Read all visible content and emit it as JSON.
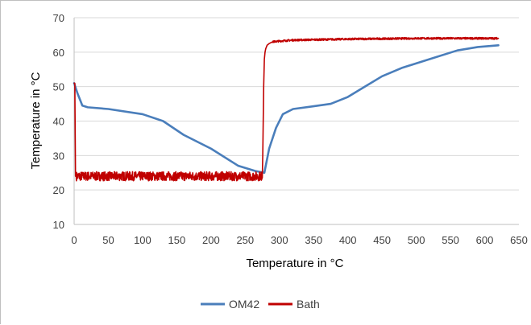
{
  "chart_data": {
    "type": "line",
    "title": "",
    "xlabel": "Temperature in °C",
    "ylabel": "Temperature in °C",
    "xlim": [
      0,
      650
    ],
    "ylim": [
      10,
      70
    ],
    "x_ticks": [
      "0",
      "50",
      "100",
      "150",
      "200",
      "250",
      "300",
      "350",
      "400",
      "450",
      "500",
      "550",
      "600",
      "650"
    ],
    "y_ticks": [
      "10",
      "20",
      "30",
      "40",
      "50",
      "60",
      "70"
    ],
    "grid": "horizontal",
    "legend_position": "bottom",
    "series": [
      {
        "name": "OM42",
        "color": "#4a7ebb",
        "x": [
          0,
          5,
          12,
          20,
          50,
          100,
          130,
          160,
          200,
          240,
          265,
          278,
          285,
          295,
          305,
          320,
          350,
          375,
          400,
          425,
          450,
          480,
          520,
          560,
          590,
          620
        ],
        "y": [
          51,
          48,
          44.5,
          44,
          43.5,
          42,
          40,
          36,
          32,
          27,
          25.5,
          25,
          32,
          38,
          42,
          43.5,
          44.3,
          45,
          47,
          50,
          53,
          55.5,
          58,
          60.5,
          61.5,
          62
        ]
      },
      {
        "name": "Bath",
        "color": "#c00000",
        "noise": 1.2,
        "x": [
          0,
          1,
          2,
          5,
          20,
          100,
          200,
          270,
          275,
          276,
          277,
          278,
          279,
          280,
          282,
          285,
          290,
          300,
          320,
          400,
          500,
          600,
          620
        ],
        "y": [
          51,
          51,
          24,
          24,
          24,
          24,
          24,
          24,
          24,
          35,
          50,
          58,
          60,
          61,
          62,
          62.5,
          63,
          63.2,
          63.5,
          63.8,
          64,
          64,
          64
        ]
      }
    ]
  }
}
